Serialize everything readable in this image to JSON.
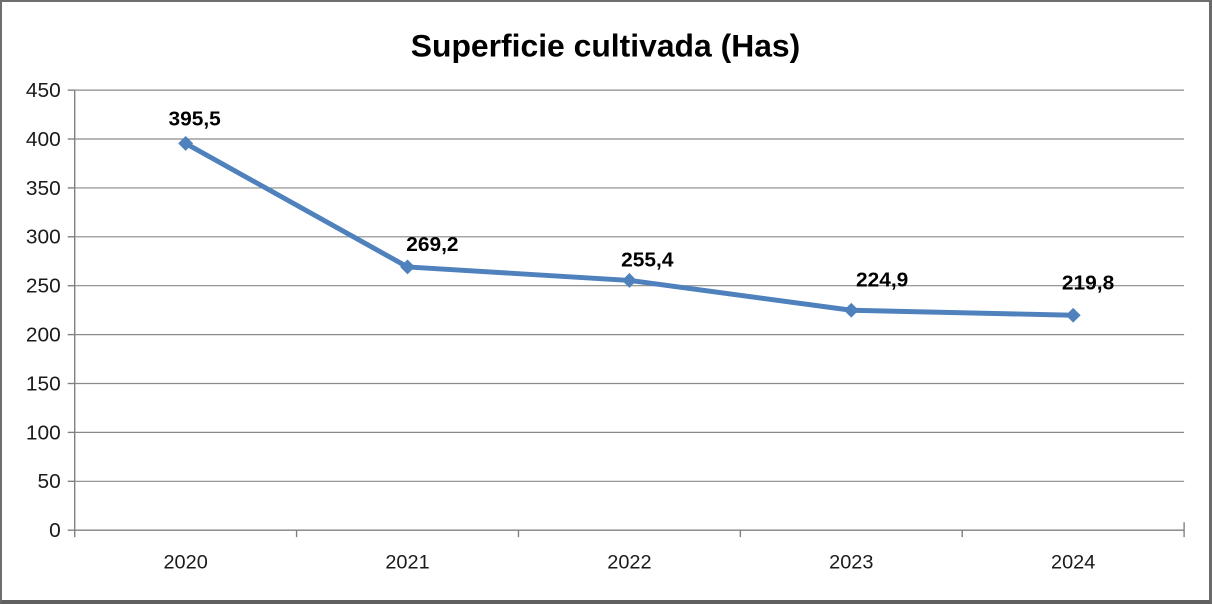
{
  "frame": {
    "background": "#FFFFFF",
    "border_color": "#6E6E6E"
  },
  "chart_data": {
    "type": "line",
    "title": "Superficie cultivada (Has)",
    "categories": [
      "2020",
      "2021",
      "2022",
      "2023",
      "2024"
    ],
    "series": [
      {
        "name": "Superficie cultivada (Has)",
        "values": [
          395.5,
          269.2,
          255.4,
          224.9,
          219.8
        ],
        "data_labels": [
          "395,5",
          "269,2",
          "255,4",
          "224,9",
          "219,8"
        ],
        "color": "#4F81BD",
        "marker": "diamond"
      }
    ],
    "xlabel": "",
    "ylabel": "",
    "ylim": [
      0,
      450
    ],
    "y_tick_step": 50,
    "y_tick_labels": [
      "0",
      "50",
      "100",
      "150",
      "200",
      "250",
      "300",
      "350",
      "400",
      "450"
    ],
    "grid": true,
    "legend": "none",
    "colors": {
      "line": "#4F81BD",
      "grid": "#8A8A8A",
      "axis": "#808080",
      "title_text": "#000000",
      "data_label_text": "#000000",
      "tick_label_text": "#1A1A1A"
    }
  }
}
